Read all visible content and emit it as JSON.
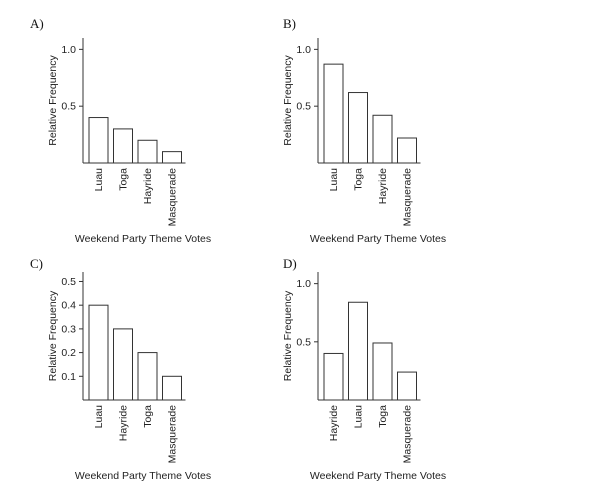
{
  "chart_data": [
    {
      "type": "bar",
      "panel_label": "A)",
      "categories": [
        "Luau",
        "Toga",
        "Hayride",
        "Masquerade"
      ],
      "values": [
        0.4,
        0.3,
        0.2,
        0.1
      ],
      "xlabel": "Weekend Party Theme Votes",
      "ylabel": "Relative Frequency",
      "yticks": [
        0.5,
        1.0
      ],
      "ytick_labels": [
        "0.5",
        "1.0"
      ],
      "ylim": [
        0,
        1.1
      ],
      "grid": false
    },
    {
      "type": "bar",
      "panel_label": "B)",
      "categories": [
        "Luau",
        "Toga",
        "Hayride",
        "Masquerade"
      ],
      "values": [
        0.87,
        0.62,
        0.42,
        0.22
      ],
      "xlabel": "Weekend Party Theme Votes",
      "ylabel": "Relative Frequency",
      "yticks": [
        0.5,
        1.0
      ],
      "ytick_labels": [
        "0.5",
        "1.0"
      ],
      "ylim": [
        0,
        1.1
      ],
      "grid": false
    },
    {
      "type": "bar",
      "panel_label": "C)",
      "categories": [
        "Luau",
        "Hayride",
        "Toga",
        "Masquerade"
      ],
      "values": [
        0.4,
        0.3,
        0.2,
        0.1
      ],
      "xlabel": "Weekend Party Theme Votes",
      "ylabel": "Relative Frequency",
      "yticks": [
        0.1,
        0.2,
        0.3,
        0.4,
        0.5
      ],
      "ytick_labels": [
        "0.1",
        "0.2",
        "0.3",
        "0.4",
        "0.5"
      ],
      "ylim": [
        0,
        0.52
      ],
      "grid": false
    },
    {
      "type": "bar",
      "panel_label": "D)",
      "categories": [
        "Hayride",
        "Luau",
        "Toga",
        "Masquerade"
      ],
      "values": [
        0.4,
        0.84,
        0.49,
        0.24
      ],
      "xlabel": "Weekend Party Theme Votes",
      "ylabel": "Relative Frequency",
      "yticks": [
        0.5,
        1.0
      ],
      "ytick_labels": [
        "0.5",
        "1.0"
      ],
      "ylim": [
        0,
        1.1
      ],
      "grid": false
    }
  ]
}
